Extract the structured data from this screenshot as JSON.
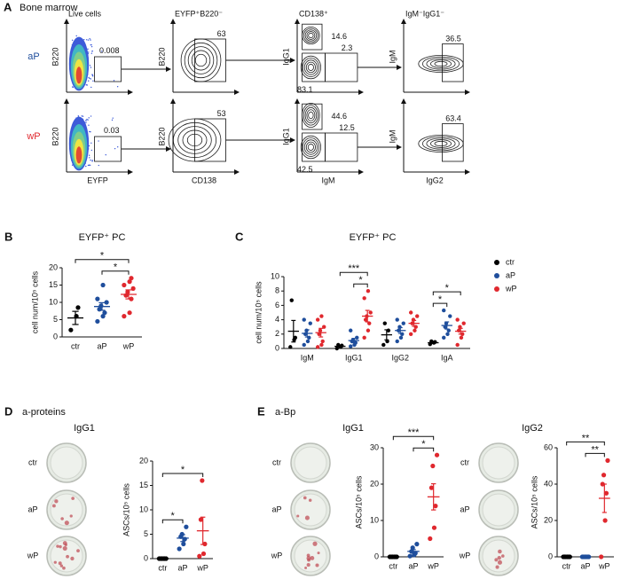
{
  "panel_a": {
    "panel": "A",
    "title": "Bone marrow",
    "rows": [
      "aP",
      "wP"
    ],
    "columns": [
      {
        "header": "Live cells",
        "xlabel": "EYFP",
        "ylabel": "B220"
      },
      {
        "header": "EYFP⁺B220⁻",
        "xlabel": "CD138",
        "ylabel": "B220"
      },
      {
        "header": "CD138⁺",
        "xlabel": "IgM",
        "ylabel": "IgG1"
      },
      {
        "header": "IgM⁻IgG1⁻",
        "xlabel": "IgG2",
        "ylabel": "IgM"
      }
    ],
    "gates": [
      [
        [
          0.008
        ],
        [
          63
        ],
        [
          14.6,
          2.3,
          83.1
        ],
        [
          36.5
        ]
      ],
      [
        [
          0.03
        ],
        [
          53
        ],
        [
          44.6,
          12.5,
          42.5
        ],
        [
          63.4
        ]
      ]
    ]
  },
  "chart_data": [
    {
      "panel": "B",
      "type": "dot",
      "title": "EYFP⁺ PC",
      "categories": [
        "ctr",
        "aP",
        "wP"
      ],
      "colors": [
        "#000000",
        "#1f4e9c",
        "#e0282e"
      ],
      "values": [
        [
          2,
          6,
          8.5
        ],
        [
          4.5,
          6,
          7,
          8,
          9,
          10,
          11,
          15
        ],
        [
          6,
          7,
          11,
          12,
          13,
          14,
          15,
          16,
          17
        ]
      ],
      "means": [
        5.5,
        8.8,
        12.3
      ],
      "sems": [
        1.9,
        1.1,
        1.3
      ],
      "ylabel": "cell num/10⁵ cells",
      "ylim": [
        0,
        20
      ],
      "yticks": [
        0,
        5,
        10,
        15,
        20
      ],
      "significance": [
        {
          "label": "*",
          "between": [
            1,
            2
          ]
        },
        {
          "label": "*",
          "between": [
            0,
            2
          ]
        }
      ]
    },
    {
      "panel": "C",
      "type": "dot",
      "title": "EYFP⁺ PC",
      "categories": [
        "IgM",
        "IgG1",
        "IgG2",
        "IgA"
      ],
      "legend": "right",
      "series": [
        {
          "name": "ctr",
          "color": "#000000",
          "values": [
            [
              0.2,
              1.2,
              1.5,
              6.7
            ],
            [
              0,
              0.2,
              0.4,
              0.5
            ],
            [
              0.5,
              1,
              2.5,
              3.5
            ],
            [
              0.6,
              0.8,
              0.9,
              1
            ]
          ],
          "means": [
            2.4,
            0.3,
            1.9,
            0.8
          ],
          "sems": [
            1.5,
            0.1,
            0.7,
            0.1
          ]
        },
        {
          "name": "aP",
          "color": "#1f4e9c",
          "values": [
            [
              0.5,
              1,
              1.5,
              2,
              2.5,
              3.5,
              4
            ],
            [
              0.3,
              0.5,
              0.8,
              1,
              1.2,
              1.5,
              2.5
            ],
            [
              1,
              1.5,
              2,
              2.5,
              3,
              3.5,
              4
            ],
            [
              1.5,
              2,
              2.5,
              3,
              3.5,
              4.5,
              5.3
            ]
          ],
          "means": [
            2.1,
            1.1,
            2.5,
            3.2
          ],
          "sems": [
            0.5,
            0.3,
            0.4,
            0.5
          ]
        },
        {
          "name": "wP",
          "color": "#e0282e",
          "values": [
            [
              0.2,
              0.5,
              1,
              2,
              2.5,
              3,
              4,
              4.5
            ],
            [
              1.5,
              2.5,
              3.5,
              4,
              4.5,
              5,
              7,
              8
            ],
            [
              2,
              2.5,
              3,
              3.5,
              4,
              4.5,
              5
            ],
            [
              0.5,
              1.5,
              2,
              2.5,
              3,
              3.5,
              4
            ]
          ],
          "means": [
            2.2,
            4.5,
            3.5,
            2.4
          ],
          "sems": [
            0.6,
            0.8,
            0.4,
            0.4
          ]
        }
      ],
      "ylabel": "cell num/10⁵ cells",
      "ylim": [
        0,
        10
      ],
      "yticks": [
        0,
        2,
        4,
        6,
        8,
        10
      ],
      "significance": [
        {
          "label": "*",
          "category": 1,
          "between": [
            1,
            2
          ]
        },
        {
          "label": "***",
          "category": 1,
          "between": [
            0,
            2
          ]
        },
        {
          "label": "*",
          "category": 3,
          "between": [
            0,
            1
          ]
        },
        {
          "label": "*",
          "category": 3,
          "between": [
            0,
            2
          ]
        }
      ]
    },
    {
      "panel": "D",
      "subtitle": "a-proteins",
      "type": "dot",
      "title": "IgG1",
      "plate_labels": [
        "ctr",
        "aP",
        "wP"
      ],
      "categories": [
        "ctr",
        "aP",
        "wP"
      ],
      "colors": [
        "#000000",
        "#1f4e9c",
        "#e0282e"
      ],
      "values": [
        [
          0,
          0,
          0,
          0,
          0,
          0
        ],
        [
          2,
          3,
          4,
          4.5,
          5,
          6.5
        ],
        [
          0.5,
          1,
          3,
          8,
          16
        ]
      ],
      "means": [
        0,
        4.2,
        5.7
      ],
      "sems": [
        0,
        0.7,
        2.8
      ],
      "ylabel": "ASCs/10⁵ cells",
      "ylim": [
        0,
        20
      ],
      "yticks": [
        0,
        5,
        10,
        15,
        20
      ],
      "significance": [
        {
          "label": "*",
          "between": [
            0,
            1
          ]
        },
        {
          "label": "*",
          "between": [
            0,
            2
          ]
        }
      ]
    },
    {
      "panel": "E",
      "subtitle": "a-Bp",
      "type": "dot",
      "title": "IgG1",
      "plate_labels": [
        "ctr",
        "aP",
        "wP"
      ],
      "categories": [
        "ctr",
        "aP",
        "wP"
      ],
      "colors": [
        "#000000",
        "#1f4e9c",
        "#e0282e"
      ],
      "values": [
        [
          0,
          0,
          0,
          0,
          0,
          0
        ],
        [
          0.2,
          0.5,
          1,
          1.5,
          2.5,
          3.5
        ],
        [
          5,
          8,
          14,
          19,
          25,
          28
        ]
      ],
      "means": [
        0,
        1.5,
        16.5
      ],
      "sems": [
        0,
        0.5,
        3.6
      ],
      "ylabel": "ASCs/10⁵ cells",
      "ylim": [
        0,
        30
      ],
      "yticks": [
        0,
        10,
        20,
        30
      ],
      "significance": [
        {
          "label": "*",
          "between": [
            1,
            2
          ]
        },
        {
          "label": "***",
          "between": [
            0,
            2
          ]
        }
      ]
    },
    {
      "type": "dot",
      "title": "IgG2",
      "plate_labels": [
        "ctr",
        "aP",
        "wP"
      ],
      "categories": [
        "ctr",
        "aP",
        "wP"
      ],
      "colors": [
        "#000000",
        "#1f4e9c",
        "#e0282e"
      ],
      "values": [
        [
          0,
          0,
          0,
          0,
          0,
          0
        ],
        [
          0,
          0,
          0,
          0,
          0,
          0
        ],
        [
          0,
          20,
          35,
          40,
          45,
          53
        ]
      ],
      "means": [
        0,
        0,
        32.2
      ],
      "sems": [
        0,
        0,
        7.8
      ],
      "ylabel": "ASCs/10⁵ cells",
      "ylim": [
        0,
        60
      ],
      "yticks": [
        0,
        20,
        40,
        60
      ],
      "significance": [
        {
          "label": "**",
          "between": [
            1,
            2
          ]
        },
        {
          "label": "**",
          "between": [
            0,
            2
          ]
        }
      ]
    }
  ]
}
